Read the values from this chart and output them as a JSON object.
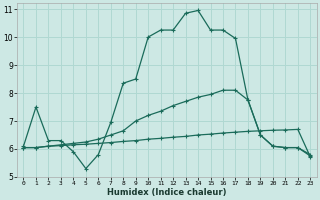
{
  "title": "",
  "xlabel": "Humidex (Indice chaleur)",
  "xlim": [
    -0.5,
    23.5
  ],
  "ylim": [
    5,
    11.2
  ],
  "yticks": [
    5,
    6,
    7,
    8,
    9,
    10,
    11
  ],
  "xticks": [
    0,
    1,
    2,
    3,
    4,
    5,
    6,
    7,
    8,
    9,
    10,
    11,
    12,
    13,
    14,
    15,
    16,
    17,
    18,
    19,
    20,
    21,
    22,
    23
  ],
  "bg_color": "#cde8e4",
  "line_color": "#1a6b5a",
  "grid_color": "#b0d8d2",
  "lines": [
    {
      "x": [
        0,
        1,
        2,
        3,
        4,
        5,
        6,
        7,
        8,
        9,
        10,
        11,
        12,
        13,
        14,
        15,
        16,
        17,
        18,
        19,
        20,
        21,
        22,
        23
      ],
      "y": [
        6.1,
        7.5,
        6.3,
        6.3,
        5.9,
        5.3,
        5.8,
        6.95,
        8.35,
        8.5,
        10.0,
        10.25,
        10.25,
        10.85,
        10.95,
        10.25,
        10.25,
        9.95,
        7.75,
        6.5,
        6.1,
        6.05,
        6.05,
        5.8
      ]
    },
    {
      "x": [
        0,
        1,
        2,
        3,
        4,
        5,
        6,
        7,
        8,
        9,
        10,
        11,
        12,
        13,
        14,
        15,
        16,
        17,
        18,
        19,
        20,
        21,
        22,
        23
      ],
      "y": [
        6.05,
        6.05,
        6.1,
        6.15,
        6.2,
        6.25,
        6.35,
        6.5,
        6.65,
        7.0,
        7.2,
        7.35,
        7.55,
        7.7,
        7.85,
        7.95,
        8.1,
        8.1,
        7.75,
        6.5,
        6.1,
        6.05,
        6.05,
        5.75
      ]
    },
    {
      "x": [
        0,
        1,
        2,
        3,
        4,
        5,
        6,
        7,
        8,
        9,
        10,
        11,
        12,
        13,
        14,
        15,
        16,
        17,
        18,
        19,
        20,
        21,
        22,
        23
      ],
      "y": [
        6.05,
        6.05,
        6.1,
        6.12,
        6.15,
        6.17,
        6.2,
        6.23,
        6.27,
        6.3,
        6.35,
        6.38,
        6.42,
        6.45,
        6.5,
        6.53,
        6.57,
        6.6,
        6.63,
        6.65,
        6.67,
        6.68,
        6.7,
        5.72
      ]
    }
  ]
}
